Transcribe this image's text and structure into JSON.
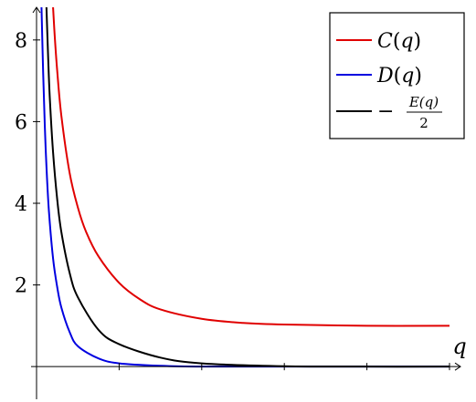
{
  "chart_data": {
    "type": "line",
    "xlabel": "q",
    "ylabel": "",
    "xlim": [
      0,
      5
    ],
    "ylim": [
      -0.8,
      8.8
    ],
    "yticks": [
      2,
      4,
      6,
      8
    ],
    "ytick_labels": [
      "2",
      "4",
      "6",
      "8"
    ],
    "xticks": [
      1,
      2,
      3,
      4,
      5
    ],
    "grid": false,
    "legend_position": "top-right",
    "series": [
      {
        "name": "C(q)",
        "legend": {
          "pre": "",
          "func": "C",
          "arg": "q"
        },
        "color": "#e00000",
        "x": [
          0.2,
          0.22,
          0.25,
          0.3,
          0.4,
          0.5,
          0.6,
          0.75,
          1.0,
          1.25,
          1.5,
          2.0,
          2.5,
          3.0,
          4.0,
          5.0
        ],
        "y": [
          8.8,
          8.1,
          7.25,
          6.15,
          4.75,
          3.9,
          3.3,
          2.7,
          2.05,
          1.65,
          1.4,
          1.17,
          1.07,
          1.03,
          1.0,
          1.0
        ]
      },
      {
        "name": "D(q)",
        "legend": {
          "pre": "",
          "func": "D",
          "arg": "q"
        },
        "color": "#0000e0",
        "x": [
          0.06,
          0.08,
          0.1,
          0.12,
          0.15,
          0.2,
          0.25,
          0.3,
          0.4,
          0.5,
          0.75,
          1.0,
          1.5,
          2.0,
          3.0,
          5.0
        ],
        "y": [
          8.8,
          7.2,
          5.9,
          4.9,
          3.8,
          2.65,
          1.95,
          1.45,
          0.85,
          0.5,
          0.2,
          0.08,
          0.02,
          0.0,
          0.0,
          0.0
        ]
      },
      {
        "name": "-E(q)/2",
        "legend": {
          "pre": "−",
          "num": "E(q)",
          "den": "2"
        },
        "color": "#000000",
        "x": [
          0.12,
          0.14,
          0.16,
          0.2,
          0.25,
          0.3,
          0.4,
          0.5,
          0.75,
          1.0,
          1.5,
          2.0,
          3.0,
          4.0,
          5.0
        ],
        "y": [
          8.8,
          7.6,
          6.6,
          5.25,
          4.1,
          3.3,
          2.3,
          1.7,
          0.9,
          0.55,
          0.22,
          0.08,
          0.01,
          0.0,
          0.0
        ]
      }
    ]
  }
}
